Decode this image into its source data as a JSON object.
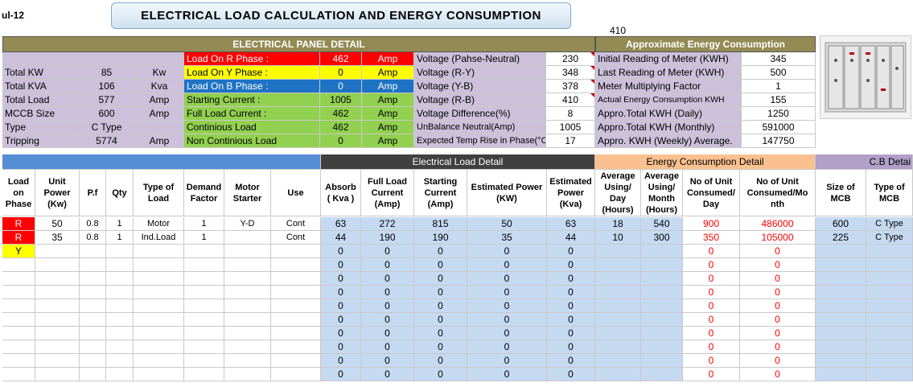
{
  "sheet_label": "ul-12",
  "title": "ELECTRICAL  LOAD  CALCULATION  AND  ENERGY CONSUMPTION",
  "top_value": "410",
  "panel_header": "ELECTRICAL PANEL DETAIL",
  "energy_header": "Approximate Energy Consumption",
  "summary": [
    {
      "label": "Total KW",
      "value": "85",
      "unit": "Kw"
    },
    {
      "label": "Total KVA",
      "value": "106",
      "unit": "Kva"
    },
    {
      "label": "Total Load",
      "value": "577",
      "unit": "Amp"
    },
    {
      "label": "MCCB Size",
      "value": "600",
      "unit": "Amp"
    },
    {
      "label": "Type",
      "value": "C Type",
      "unit": ""
    },
    {
      "label": "Tripping",
      "value": "5774",
      "unit": "Amp"
    }
  ],
  "phase_load": [
    {
      "label": "Load On R Phase :",
      "value": "462",
      "unit": "Amp",
      "color": "#ff0000"
    },
    {
      "label": "Load On Y Phase  :",
      "value": "0",
      "unit": "Amp",
      "color": "#ffff00"
    },
    {
      "label": "Load On B Phase :",
      "value": "0",
      "unit": "Amp",
      "color": "#1f73c4"
    },
    {
      "label": "Starting Current    :",
      "value": "1005",
      "unit": "Amp",
      "color": "#92d050"
    },
    {
      "label": "Full Load Current  :",
      "value": "462",
      "unit": "Amp",
      "color": "#92d050"
    },
    {
      "label": "Continious Load",
      "value": "462",
      "unit": "Amp",
      "color": "#92d050"
    },
    {
      "label": "Non Continious Load",
      "value": "0",
      "unit": "Amp",
      "color": "#92d050"
    }
  ],
  "voltage": [
    {
      "label": "Voltage (Pahse-Neutral)",
      "value": "230"
    },
    {
      "label": "Voltage (R-Y)",
      "value": "348"
    },
    {
      "label": "Voltage (Y-B)",
      "value": "378"
    },
    {
      "label": "Voltage (R-B)",
      "value": "410"
    },
    {
      "label": "Voltage Difference(%)",
      "value": "8"
    },
    {
      "label": "UnBalance Neutral(Amp)",
      "value": "1005"
    },
    {
      "label": "Expected Temp Rise in Phase(°C)",
      "value": "17"
    }
  ],
  "energy": [
    {
      "label": "Initial Reading of Meter (KWH)",
      "value": "345"
    },
    {
      "label": "Last Reading of Meter (KWH)",
      "value": "500"
    },
    {
      "label": "Meter Multiplying Factor",
      "value": "1"
    },
    {
      "label": "Actual Energy Consumption KWH",
      "value": "155"
    },
    {
      "label": "Appro.Total KWH (Daily)",
      "value": "1250"
    },
    {
      "label": "Appro.Total KWH (Monthly)",
      "value": "591000"
    },
    {
      "label": "Appro. KWH (Weekly) Average.",
      "value": "147750"
    }
  ],
  "section_headers": {
    "load_detail": "Electrical Load Detail",
    "energy_detail": "Energy Consumption Detail",
    "cb_detail": "C.B Detai"
  },
  "columns": [
    "Load on Phase",
    "Unit Power (Kw)",
    "P.f",
    "Qty",
    "Type of Load",
    "Demand Factor",
    "Motor Starter",
    "Use",
    "Absorb ( Kva )",
    "Full Load Current (Amp)",
    "Starting Current (Amp)",
    "Estimated Power  (KW)",
    "Estimated Power (Kva)",
    "Average Using/ Day (Hours)",
    "Average Using/ Month (Hours)",
    "No of Unit Consumed/ Day",
    "No of Unit Consumed/Mo nth",
    "Size of MCB",
    "Type of MCB"
  ],
  "rows": [
    {
      "phase": "R",
      "unit_power": "50",
      "pf": "0.8",
      "qty": "1",
      "type": "Motor",
      "demand": "1",
      "starter": "Y-D",
      "use": "Cont",
      "absorb": "63",
      "flc": "272",
      "sc": "815",
      "est_kw": "50",
      "est_kva": "63",
      "avg_day": "18",
      "avg_month": "540",
      "units_day": "900",
      "units_month": "486000",
      "mcb_size": "600",
      "mcb_type": "C Type"
    },
    {
      "phase": "R",
      "unit_power": "35",
      "pf": "0.8",
      "qty": "1",
      "type": "Ind.Load",
      "demand": "1",
      "starter": "",
      "use": "Cont",
      "absorb": "44",
      "flc": "190",
      "sc": "190",
      "est_kw": "35",
      "est_kva": "44",
      "avg_day": "10",
      "avg_month": "300",
      "units_day": "350",
      "units_month": "105000",
      "mcb_size": "225",
      "mcb_type": "C Type"
    },
    {
      "phase": "Y",
      "unit_power": "",
      "pf": "",
      "qty": "",
      "type": "",
      "demand": "",
      "starter": "",
      "use": "",
      "absorb": "0",
      "flc": "0",
      "sc": "0",
      "est_kw": "0",
      "est_kva": "0",
      "avg_day": "",
      "avg_month": "",
      "units_day": "0",
      "units_month": "0",
      "mcb_size": "",
      "mcb_type": ""
    },
    {
      "phase": "",
      "unit_power": "",
      "pf": "",
      "qty": "",
      "type": "",
      "demand": "",
      "starter": "",
      "use": "",
      "absorb": "0",
      "flc": "0",
      "sc": "0",
      "est_kw": "0",
      "est_kva": "0",
      "avg_day": "",
      "avg_month": "",
      "units_day": "0",
      "units_month": "0",
      "mcb_size": "",
      "mcb_type": ""
    },
    {
      "phase": "",
      "unit_power": "",
      "pf": "",
      "qty": "",
      "type": "",
      "demand": "",
      "starter": "",
      "use": "",
      "absorb": "0",
      "flc": "0",
      "sc": "0",
      "est_kw": "0",
      "est_kva": "0",
      "avg_day": "",
      "avg_month": "",
      "units_day": "0",
      "units_month": "0",
      "mcb_size": "",
      "mcb_type": ""
    },
    {
      "phase": "",
      "unit_power": "",
      "pf": "",
      "qty": "",
      "type": "",
      "demand": "",
      "starter": "",
      "use": "",
      "absorb": "0",
      "flc": "0",
      "sc": "0",
      "est_kw": "0",
      "est_kva": "0",
      "avg_day": "",
      "avg_month": "",
      "units_day": "0",
      "units_month": "0",
      "mcb_size": "",
      "mcb_type": ""
    },
    {
      "phase": "",
      "unit_power": "",
      "pf": "",
      "qty": "",
      "type": "",
      "demand": "",
      "starter": "",
      "use": "",
      "absorb": "0",
      "flc": "0",
      "sc": "0",
      "est_kw": "0",
      "est_kva": "0",
      "avg_day": "",
      "avg_month": "",
      "units_day": "0",
      "units_month": "0",
      "mcb_size": "",
      "mcb_type": ""
    },
    {
      "phase": "",
      "unit_power": "",
      "pf": "",
      "qty": "",
      "type": "",
      "demand": "",
      "starter": "",
      "use": "",
      "absorb": "0",
      "flc": "0",
      "sc": "0",
      "est_kw": "0",
      "est_kva": "0",
      "avg_day": "",
      "avg_month": "",
      "units_day": "0",
      "units_month": "0",
      "mcb_size": "",
      "mcb_type": ""
    },
    {
      "phase": "",
      "unit_power": "",
      "pf": "",
      "qty": "",
      "type": "",
      "demand": "",
      "starter": "",
      "use": "",
      "absorb": "0",
      "flc": "0",
      "sc": "0",
      "est_kw": "0",
      "est_kva": "0",
      "avg_day": "",
      "avg_month": "",
      "units_day": "0",
      "units_month": "0",
      "mcb_size": "",
      "mcb_type": ""
    },
    {
      "phase": "",
      "unit_power": "",
      "pf": "",
      "qty": "",
      "type": "",
      "demand": "",
      "starter": "",
      "use": "",
      "absorb": "0",
      "flc": "0",
      "sc": "0",
      "est_kw": "0",
      "est_kva": "0",
      "avg_day": "",
      "avg_month": "",
      "units_day": "0",
      "units_month": "0",
      "mcb_size": "",
      "mcb_type": ""
    },
    {
      "phase": "",
      "unit_power": "",
      "pf": "",
      "qty": "",
      "type": "",
      "demand": "",
      "starter": "",
      "use": "",
      "absorb": "0",
      "flc": "0",
      "sc": "0",
      "est_kw": "0",
      "est_kva": "0",
      "avg_day": "",
      "avg_month": "",
      "units_day": "0",
      "units_month": "0",
      "mcb_size": "",
      "mcb_type": ""
    },
    {
      "phase": "",
      "unit_power": "",
      "pf": "",
      "qty": "",
      "type": "",
      "demand": "",
      "starter": "",
      "use": "",
      "absorb": "0",
      "flc": "0",
      "sc": "0",
      "est_kw": "0",
      "est_kva": "0",
      "avg_day": "",
      "avg_month": "",
      "units_day": "0",
      "units_month": "0",
      "mcb_size": "",
      "mcb_type": ""
    }
  ],
  "panel_image": "electrical-panel-photo"
}
